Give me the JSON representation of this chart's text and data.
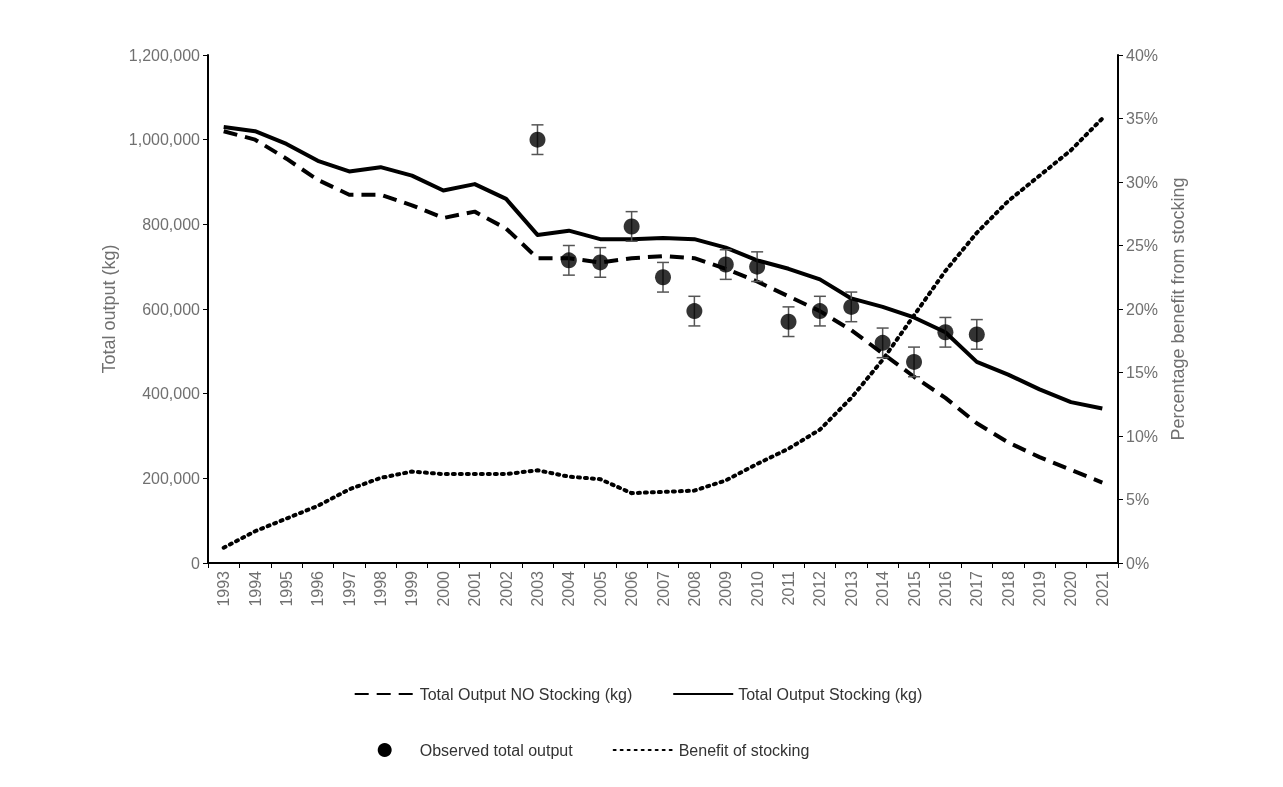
{
  "chart_data": {
    "type": "line",
    "ylabel": "Total output (kg)",
    "y2label": "Percentage benefit from stocking",
    "categories": [
      "1993",
      "1994",
      "1995",
      "1996",
      "1997",
      "1998",
      "1999",
      "2000",
      "2001",
      "2002",
      "2003",
      "2004",
      "2005",
      "2006",
      "2007",
      "2008",
      "2009",
      "2010",
      "2011",
      "2012",
      "2013",
      "2014",
      "2015",
      "2016",
      "2017",
      "2018",
      "2019",
      "2020",
      "2021"
    ],
    "series": [
      {
        "name": "Total Output NO Stocking (kg)",
        "color": "#000000",
        "line_style": "dashed",
        "marker": "none",
        "values": [
          1020000,
          1000000,
          955000,
          905000,
          870000,
          870000,
          845000,
          815000,
          830000,
          790000,
          720000,
          720000,
          710000,
          720000,
          725000,
          720000,
          695000,
          665000,
          630000,
          595000,
          550000,
          495000,
          440000,
          390000,
          330000,
          285000,
          250000,
          220000,
          190000
        ]
      },
      {
        "name": "Total Output Stocking (kg)",
        "color": "#000000",
        "line_style": "solid",
        "marker": "none",
        "values": [
          1030000,
          1020000,
          990000,
          950000,
          925000,
          935000,
          915000,
          880000,
          895000,
          860000,
          775000,
          785000,
          765000,
          765000,
          768000,
          765000,
          745000,
          715000,
          695000,
          670000,
          625000,
          605000,
          580000,
          545000,
          475000,
          445000,
          410000,
          380000,
          365000
        ]
      },
      {
        "name": "Observed total output",
        "type": "scatter",
        "color": "#000000",
        "marker": "circle",
        "values": [
          null,
          null,
          null,
          null,
          null,
          null,
          null,
          null,
          null,
          null,
          1000000,
          715000,
          710000,
          795000,
          675000,
          595000,
          705000,
          700000,
          570000,
          595000,
          605000,
          520000,
          475000,
          545000,
          540000,
          null,
          null,
          null,
          null
        ],
        "errors": [
          null,
          null,
          null,
          null,
          null,
          null,
          null,
          null,
          null,
          null,
          35000,
          35000,
          35000,
          35000,
          35000,
          35000,
          35000,
          35000,
          35000,
          35000,
          35000,
          35000,
          35000,
          35000,
          35000,
          null,
          null,
          null,
          null
        ]
      },
      {
        "name": "Benefit of stocking",
        "axis": "y2",
        "color": "#000000",
        "line_style": "dotted",
        "marker": "none",
        "values": [
          1.2,
          2.5,
          3.5,
          4.5,
          5.8,
          6.7,
          7.2,
          7.0,
          7.0,
          7.0,
          7.3,
          6.8,
          6.6,
          5.5,
          5.6,
          5.7,
          6.5,
          7.8,
          9.0,
          10.5,
          13.0,
          16.0,
          19.5,
          23.0,
          26.0,
          28.5,
          30.5,
          32.5,
          35.0
        ]
      }
    ],
    "ylim": [
      0,
      1200000
    ],
    "yticks": [
      0,
      {
        "value": 200000,
        "label": "200,000"
      },
      {
        "value": 400000,
        "label": "400,000"
      },
      {
        "value": 600000,
        "label": "600,000"
      },
      {
        "value": 800000,
        "label": "800,000"
      },
      {
        "value": 1000000,
        "label": "1,000,000"
      },
      {
        "value": 1200000,
        "label": "1,200,000"
      }
    ],
    "y2lim": [
      0,
      40
    ],
    "y2ticks": [
      {
        "value": 0,
        "label": "0%"
      },
      {
        "value": 5,
        "label": "5%"
      },
      {
        "value": 10,
        "label": "10%"
      },
      {
        "value": 15,
        "label": "15%"
      },
      {
        "value": 20,
        "label": "20%"
      },
      {
        "value": 25,
        "label": "25%"
      },
      {
        "value": 30,
        "label": "30%"
      },
      {
        "value": 35,
        "label": "35%"
      },
      {
        "value": 40,
        "label": "40%"
      }
    ],
    "grid": false,
    "legend": "bottom"
  }
}
